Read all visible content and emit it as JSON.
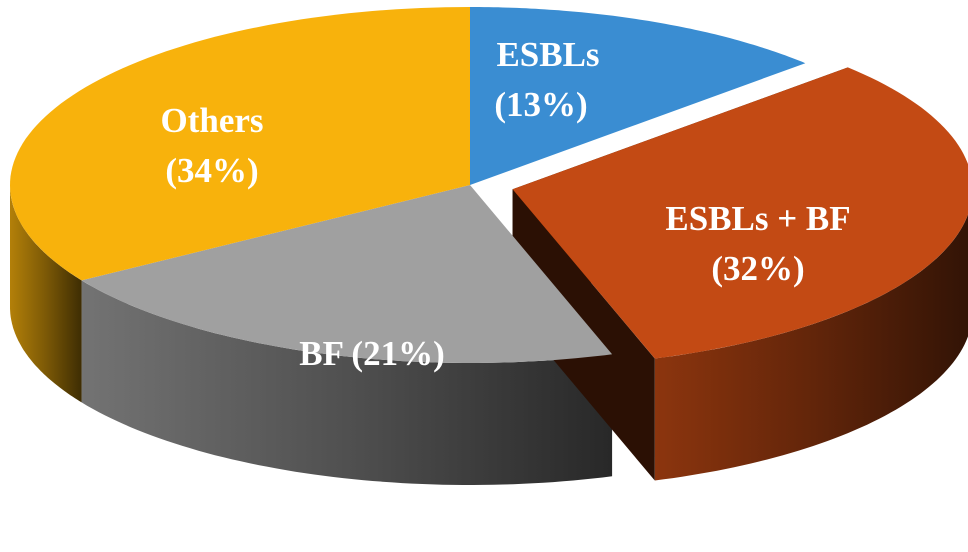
{
  "chart_data": {
    "type": "pie",
    "style": "3d-exploded",
    "slices": [
      {
        "label": "ESBLs",
        "pct_label": "(13%)",
        "value": 13,
        "color": "#3a8dd2"
      },
      {
        "label": "ESBLs + BF",
        "pct_label": "(32%)",
        "value": 32,
        "color": "#c34a14",
        "exploded": true
      },
      {
        "label": "BF (21%)",
        "pct_label": "",
        "value": 21,
        "color": "#a0a0a0"
      },
      {
        "label": "Others",
        "pct_label": "(34%)",
        "value": 34,
        "color": "#f8b20c"
      }
    ]
  }
}
